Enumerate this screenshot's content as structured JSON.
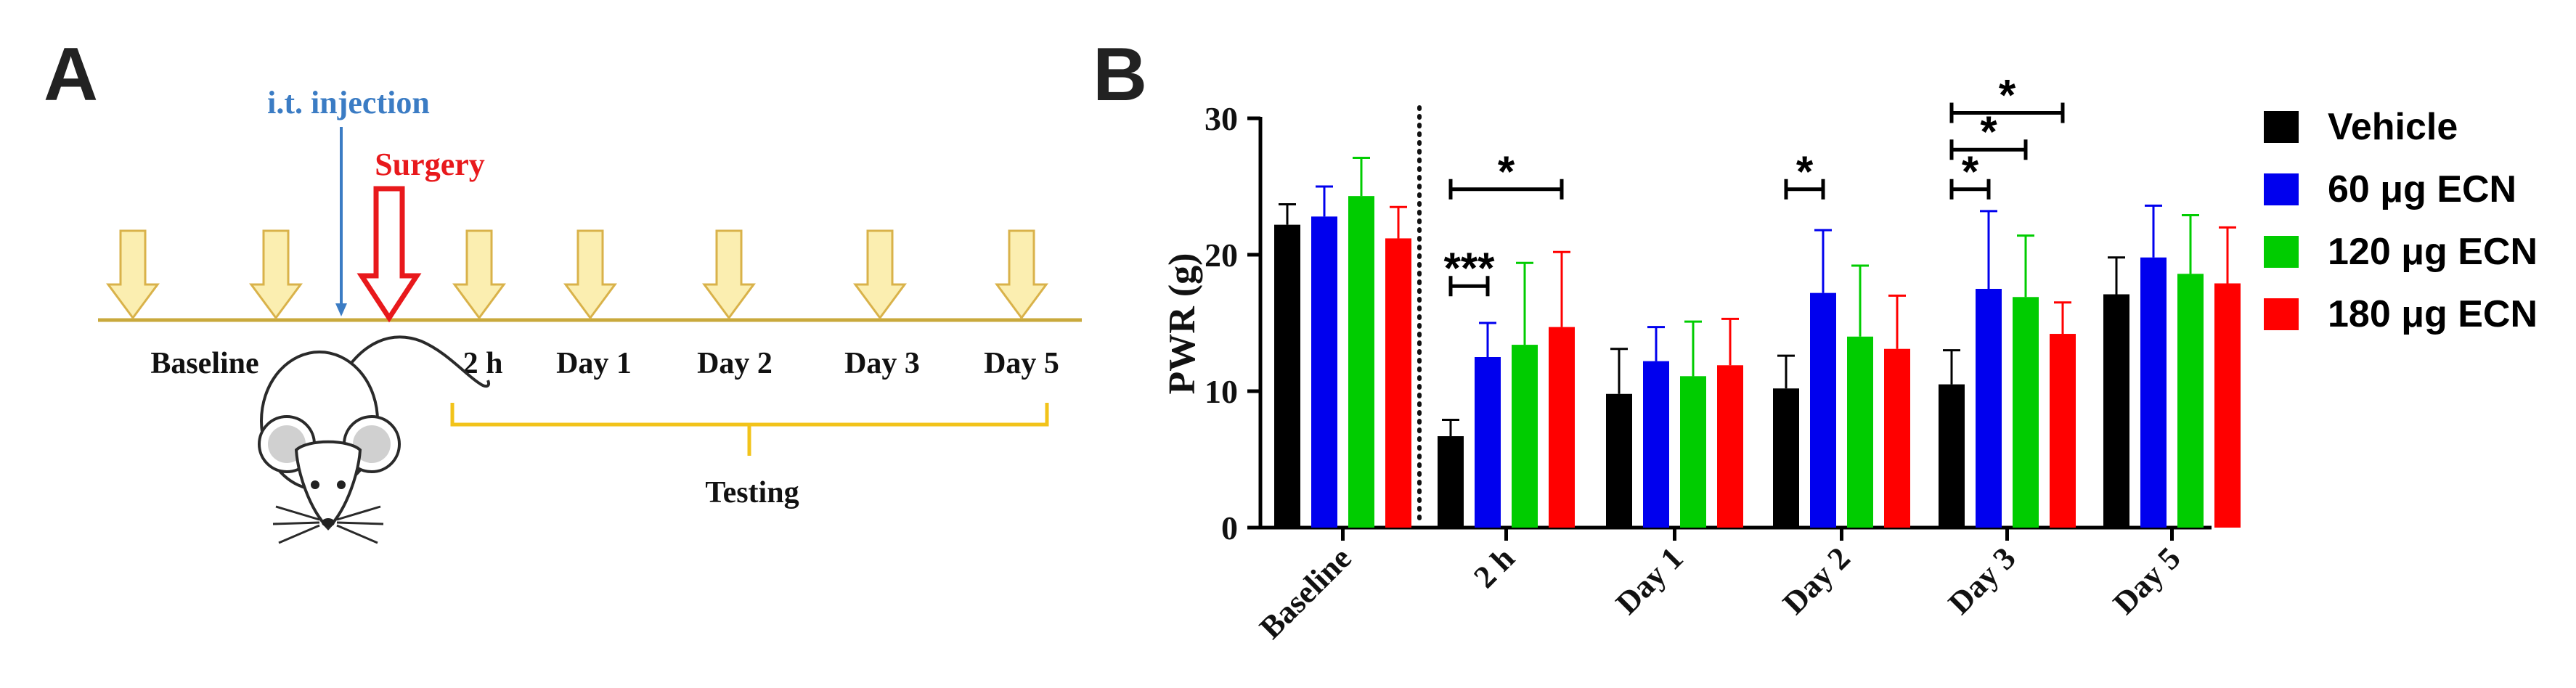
{
  "panel_a": {
    "letter": "A",
    "injection_label": "i.t. injection",
    "surgery_label": "Surgery",
    "time_labels": [
      "Baseline",
      "2 h",
      "Day 1",
      "Day 2",
      "Day 3",
      "Day 5"
    ],
    "testing_label": "Testing",
    "colors": {
      "injection": "#3b7cc4",
      "surgery": "#e8191c",
      "timeline": "#c9a93c",
      "arrow_fill": "#fbeeb0",
      "arrow_stroke": "#d9b24a",
      "bracket": "#f2c31a"
    }
  },
  "panel_b": {
    "letter": "B"
  },
  "chart_data": {
    "type": "bar",
    "title": "",
    "xlabel": "",
    "ylabel": "PWR (g)",
    "ylim": [
      0,
      30
    ],
    "yticks": [
      "0",
      "10",
      "20",
      "30"
    ],
    "categories": [
      "Baseline",
      "2 h",
      "Day 1",
      "Day 2",
      "Day 3",
      "Day 5"
    ],
    "series": [
      {
        "name": "Vehicle",
        "color": "#000000",
        "values": [
          22.2,
          6.7,
          9.8,
          10.2,
          10.5,
          17.1
        ],
        "errors": [
          1.5,
          1.2,
          3.3,
          2.4,
          2.5,
          2.7
        ]
      },
      {
        "name": "60 μg ECN",
        "color": "#0000ee",
        "values": [
          22.8,
          12.5,
          12.2,
          17.2,
          17.5,
          19.8
        ],
        "errors": [
          2.2,
          2.5,
          2.5,
          4.6,
          5.7,
          3.8
        ]
      },
      {
        "name": "120 μg ECN",
        "color": "#00cc00",
        "values": [
          24.3,
          13.4,
          11.1,
          14.0,
          16.9,
          18.6
        ],
        "errors": [
          2.8,
          6.0,
          4.0,
          5.2,
          4.5,
          4.3
        ]
      },
      {
        "name": "180 μg ECN",
        "color": "#ff0000",
        "values": [
          21.2,
          14.7,
          11.9,
          13.1,
          14.2,
          17.9
        ],
        "errors": [
          2.3,
          5.5,
          3.4,
          3.9,
          2.3,
          4.1
        ]
      }
    ],
    "divider_after_category": "Baseline",
    "significance": [
      {
        "category": "2 h",
        "from_series": 0,
        "to_series": 1,
        "y": 17.7,
        "label": "***"
      },
      {
        "category": "2 h",
        "from_series": 0,
        "to_series": 3,
        "y": 24.8,
        "label": "*"
      },
      {
        "category": "Day 2",
        "from_series": 0,
        "to_series": 1,
        "y": 24.8,
        "label": "*"
      },
      {
        "category": "Day 3",
        "from_series": 0,
        "to_series": 1,
        "y": 24.8,
        "label": "*"
      },
      {
        "category": "Day 3",
        "from_series": 0,
        "to_series": 2,
        "y": 27.7,
        "label": "*"
      },
      {
        "category": "Day 3",
        "from_series": 0,
        "to_series": 3,
        "y": 30.4,
        "label": "*"
      }
    ],
    "legend_position": "right"
  }
}
